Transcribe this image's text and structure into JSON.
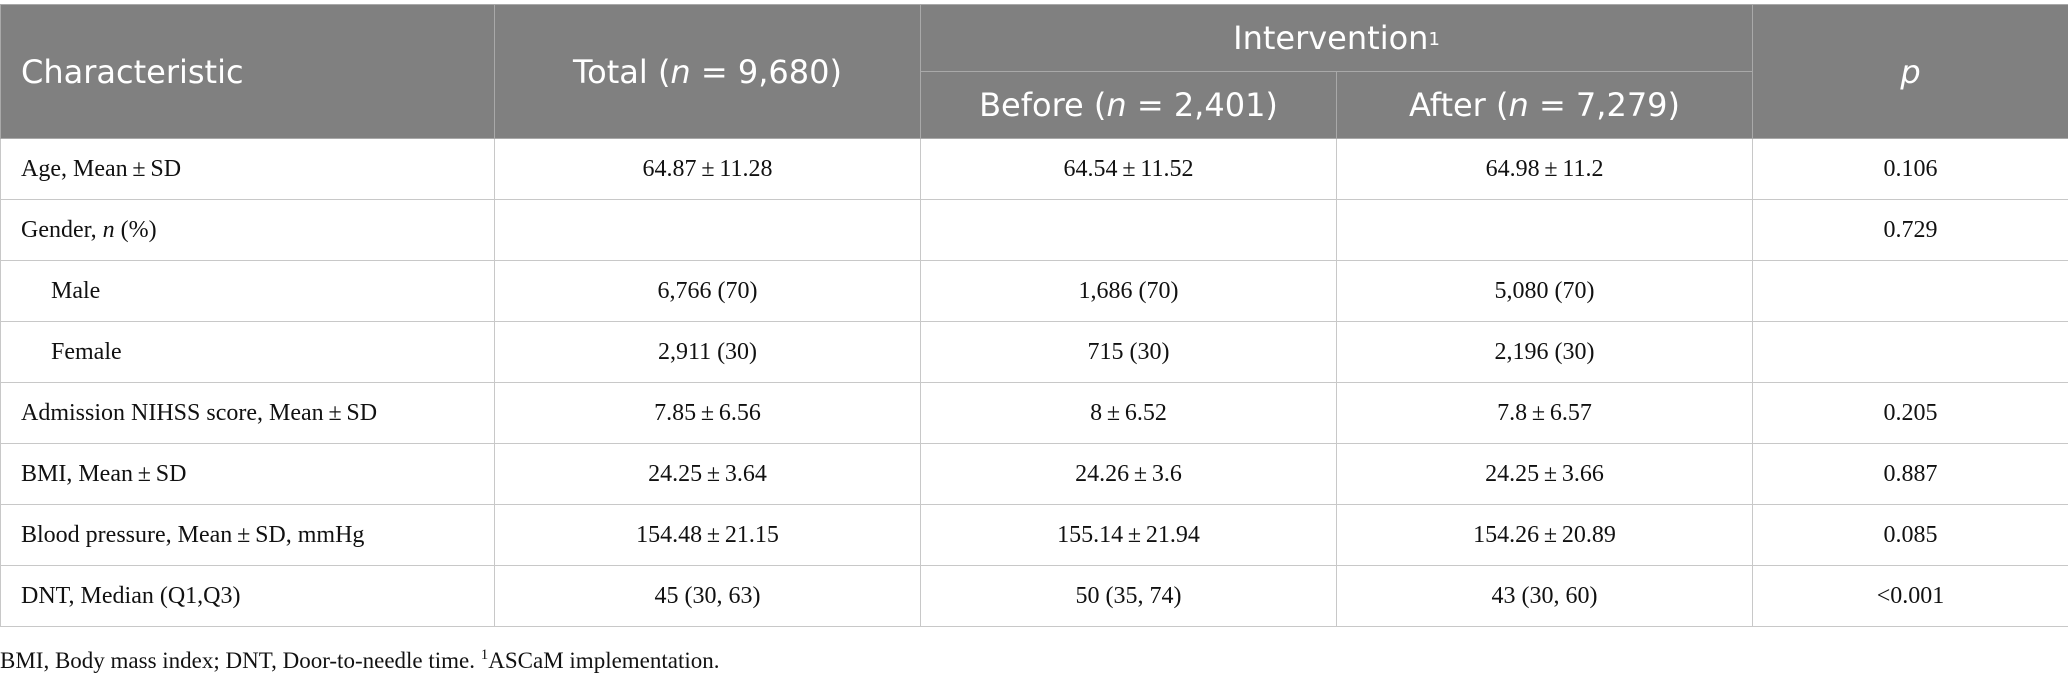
{
  "header": {
    "characteristic": "Characteristic",
    "total_prefix": "Total (",
    "total_n": "n",
    "total_suffix": " = 9,680)",
    "intervention": "Intervention",
    "intervention_sup": "1",
    "p": "p",
    "before_prefix": "Before (",
    "before_n": "n",
    "before_suffix": " = 2,401)",
    "after_prefix": "After (",
    "after_n": "n",
    "after_suffix": " = 7,279)"
  },
  "rows": [
    {
      "label": "Age, Mean ± SD",
      "total": "64.87 ± 11.28",
      "before": "64.54 ± 11.52",
      "after": "64.98 ± 11.2",
      "p": "0.106"
    },
    {
      "label_prefix": "Gender, ",
      "label_italic": "n",
      "label_suffix": " (%)",
      "total": "",
      "before": "",
      "after": "",
      "p": "0.729"
    },
    {
      "label": "Male",
      "total": "6,766 (70)",
      "before": "1,686 (70)",
      "after": "5,080 (70)",
      "p": ""
    },
    {
      "label": "Female",
      "total": "2,911 (30)",
      "before": "715 (30)",
      "after": "2,196 (30)",
      "p": ""
    },
    {
      "label": "Admission NIHSS score, Mean ± SD",
      "total": "7.85 ± 6.56",
      "before": "8 ± 6.52",
      "after": "7.8 ± 6.57",
      "p": "0.205"
    },
    {
      "label": "BMI, Mean ± SD",
      "total": "24.25 ± 3.64",
      "before": "24.26 ± 3.6",
      "after": "24.25 ± 3.66",
      "p": "0.887"
    },
    {
      "label": "Blood pressure, Mean ± SD, mmHg",
      "total": "154.48 ± 21.15",
      "before": "155.14 ± 21.94",
      "after": "154.26 ± 20.89",
      "p": "0.085"
    },
    {
      "label": "DNT, Median (Q1,Q3)",
      "total": "45 (30, 63)",
      "before": "50 (35, 74)",
      "after": "43 (30, 60)",
      "p": "<0.001"
    }
  ],
  "footnote": {
    "text": "BMI, Body mass index; DNT, Door-to-needle time. ",
    "sup": "1",
    "text2": "ASCaM implementation."
  },
  "colors": {
    "header_bg": "#808080",
    "header_text": "#ffffff",
    "grid": "#c8c8c8"
  }
}
